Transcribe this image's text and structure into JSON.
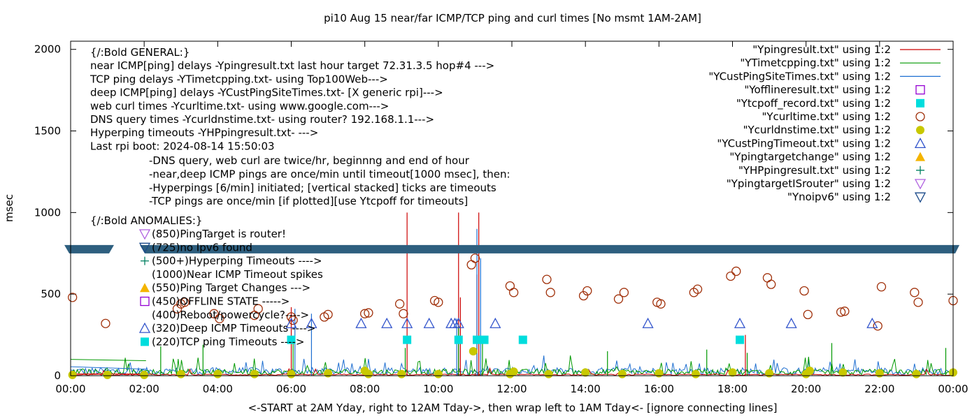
{
  "chart_data": {
    "type": "line",
    "title": "pi10 Aug 15  near/far ICMP/TCP ping and curl times [No msmt 1AM-2AM]",
    "xlabel": "<-START at 2AM Yday, right to 12AM Tday->, then wrap left to 1AM Tday<- [ignore connecting lines]",
    "ylabel": "msec",
    "xlim": [
      0,
      24
    ],
    "ylim": [
      0,
      2050
    ],
    "x_ticks": [
      "00:00",
      "02:00",
      "04:00",
      "06:00",
      "08:00",
      "10:00",
      "12:00",
      "14:00",
      "16:00",
      "18:00",
      "20:00",
      "22:00",
      "00:00"
    ],
    "y_ticks": [
      "0",
      "500",
      "1000",
      "1500",
      "2000"
    ],
    "y_tick_values": [
      0,
      500,
      1000,
      1500,
      2000
    ],
    "legend_position": "top-right",
    "legend": [
      {
        "label": "\"Ypingresult.txt\" using 1:2",
        "style": "line",
        "color": "#cc0000"
      },
      {
        "label": "\"YTimetcpping.txt\" using 1:2",
        "style": "line",
        "color": "#009900"
      },
      {
        "label": "\"YCustPingSiteTimes.txt\" using 1:2",
        "style": "line",
        "color": "#1f6fd1"
      },
      {
        "label": "\"Yofflineresult.txt\" using 1:2",
        "style": "open-square",
        "color": "#9400d3"
      },
      {
        "label": "\"Ytcpoff_record.txt\" using 1:2",
        "style": "filled-square",
        "color": "#00dddd"
      },
      {
        "label": "\"Ycurltime.txt\" using 1:2",
        "style": "open-circle",
        "color": "#a0300a"
      },
      {
        "label": "\"Ycurldnstime.txt\" using 1:2",
        "style": "filled-circle",
        "color": "#c8c800"
      },
      {
        "label": "\"YCustPingTimeout.txt\" using 1:2",
        "style": "open-triangle",
        "color": "#3355cc"
      },
      {
        "label": "\"Ypingtargetchange\" using 1:2",
        "style": "filled-triangle",
        "color": "#f4b400"
      },
      {
        "label": "\"YHPpingresult.txt\" using 1:2",
        "style": "plus",
        "color": "#008060"
      },
      {
        "label": "\"YpingtargetISrouter\" using 1:2",
        "style": "open-down-triangle",
        "color": "#b060e0"
      },
      {
        "label": "\"Ynoipv6\" using 1:2",
        "style": "open-down-triangle",
        "color": "#1a4a8a"
      }
    ],
    "annotations": {
      "general": [
        "{/:Bold GENERAL:}",
        "near ICMP[ping] delays -Ypingresult.txt last hour target 72.31.3.5 hop#4 --->",
        "TCP ping delays -YTimetcpping.txt- using Top100Web--->",
        "deep ICMP[ping] delays -YCustPingSiteTimes.txt- [X generic rpi]--->",
        "web curl times -Ycurltime.txt- using www.google.com--->",
        "DNS query times -Ycurldnstime.txt- using router? 192.168.1.1--->",
        "Hyperping timeouts -YHPpingresult.txt- --->",
        "Last rpi boot: 2024-08-14 15:50:03"
      ],
      "notes": [
        "-DNS query, web curl are twice/hr, beginnng and end of hour",
        "-near,deep ICMP pings are once/min until timeout[1000 msec], then:",
        "  -Hyperpings [6/min] initiated; [vertical stacked] ticks are timeouts",
        "-TCP pings are once/min [if plotted][use Ytcpoff for timeouts]"
      ],
      "anomalies_title": "{/:Bold ANOMALIES:}",
      "anomalies": [
        {
          "text": "(850)PingTarget is router!",
          "y": 850,
          "marker": "open-down-triangle",
          "color": "#b060e0"
        },
        {
          "text": "(725)no Ipv6 found",
          "y": 725,
          "marker": "open-down-triangle",
          "color": "#1a4a8a"
        },
        {
          "text": "(500+)Hyperping Timeouts ---->",
          "y": 700,
          "marker": "plus",
          "color": "#008060"
        },
        {
          "text": "(1000)Near ICMP Timeout spikes",
          "y": 620,
          "marker": "none",
          "color": "#000000"
        },
        {
          "text": "(550)Ping Target Changes --->",
          "y": 550,
          "marker": "filled-triangle",
          "color": "#f4b400"
        },
        {
          "text": "(450)OFFLINE STATE ----->",
          "y": 450,
          "marker": "open-square",
          "color": "#9400d3"
        },
        {
          "text": "(400)Reboot/powercycle?---->",
          "y": 400,
          "marker": "none",
          "color": "#000000"
        },
        {
          "text": "(320)Deep ICMP Timeouts ---->",
          "y": 320,
          "marker": "open-triangle",
          "color": "#3355cc"
        },
        {
          "text": "(220)TCP ping Timeouts ---->",
          "y": 220,
          "marker": "filled-square",
          "color": "#00dddd"
        }
      ]
    },
    "colors": {
      "near_icmp": "#cc0000",
      "tcp": "#009900",
      "deep_icmp": "#1f6fd1",
      "curl": "#a0300a",
      "dns": "#c8c800",
      "tcp_timeout": "#00dddd",
      "deep_timeout": "#3355cc",
      "break_band": "#2e5f7f"
    },
    "break_band_y": 775,
    "series": [
      {
        "name": "\"Ycurltime.txt\" using 1:2",
        "marker": "open-circle",
        "points": [
          [
            0.05,
            480
          ],
          [
            0.95,
            320
          ],
          [
            2.9,
            410
          ],
          [
            3.0,
            440
          ],
          [
            3.1,
            450
          ],
          [
            3.9,
            380
          ],
          [
            4.05,
            350
          ],
          [
            5.0,
            370
          ],
          [
            5.1,
            410
          ],
          [
            6.0,
            360
          ],
          [
            6.05,
            340
          ],
          [
            6.9,
            360
          ],
          [
            7.0,
            375
          ],
          [
            8.0,
            380
          ],
          [
            8.1,
            385
          ],
          [
            8.95,
            440
          ],
          [
            9.05,
            380
          ],
          [
            9.9,
            460
          ],
          [
            10.0,
            450
          ],
          [
            10.9,
            680
          ],
          [
            11.0,
            720
          ],
          [
            11.95,
            550
          ],
          [
            12.05,
            510
          ],
          [
            12.95,
            590
          ],
          [
            13.05,
            510
          ],
          [
            13.95,
            490
          ],
          [
            14.05,
            520
          ],
          [
            14.9,
            470
          ],
          [
            15.05,
            510
          ],
          [
            15.95,
            450
          ],
          [
            16.05,
            440
          ],
          [
            16.95,
            510
          ],
          [
            17.05,
            530
          ],
          [
            17.95,
            610
          ],
          [
            18.1,
            640
          ],
          [
            18.95,
            600
          ],
          [
            19.05,
            560
          ],
          [
            19.95,
            520
          ],
          [
            20.05,
            375
          ],
          [
            20.95,
            390
          ],
          [
            21.05,
            395
          ],
          [
            21.95,
            305
          ],
          [
            22.05,
            545
          ],
          [
            22.95,
            510
          ],
          [
            23.05,
            450
          ],
          [
            24.0,
            460
          ]
        ]
      },
      {
        "name": "\"Ycurldnstime.txt\" using 1:2",
        "marker": "filled-circle",
        "points": [
          [
            0.05,
            5
          ],
          [
            1.0,
            5
          ],
          [
            2.0,
            5
          ],
          [
            3.0,
            10
          ],
          [
            4.0,
            10
          ],
          [
            5.0,
            10
          ],
          [
            6.0,
            10
          ],
          [
            7.0,
            15
          ],
          [
            8.0,
            30
          ],
          [
            9.0,
            10
          ],
          [
            10.0,
            10
          ],
          [
            10.95,
            150
          ],
          [
            11.95,
            10
          ],
          [
            13.0,
            10
          ],
          [
            14.0,
            20
          ],
          [
            15.0,
            10
          ],
          [
            16.0,
            15
          ],
          [
            17.0,
            10
          ],
          [
            18.0,
            20
          ],
          [
            19.0,
            15
          ],
          [
            20.0,
            10
          ],
          [
            21.0,
            20
          ],
          [
            22.0,
            15
          ],
          [
            23.0,
            10
          ],
          [
            24.0,
            20
          ],
          [
            8.1,
            10
          ],
          [
            12.05,
            25
          ],
          [
            20.1,
            30
          ]
        ]
      },
      {
        "name": "\"Ytcpoff_record.txt\" using 1:2",
        "marker": "filled-square",
        "points": [
          [
            6.0,
            220
          ],
          [
            9.15,
            220
          ],
          [
            10.55,
            220
          ],
          [
            11.05,
            220
          ],
          [
            11.25,
            220
          ],
          [
            12.3,
            220
          ],
          [
            18.2,
            220
          ]
        ]
      },
      {
        "name": "\"YCustPingTimeout.txt\" using 1:2",
        "marker": "open-triangle",
        "points": [
          [
            6.0,
            320
          ],
          [
            6.55,
            320
          ],
          [
            7.9,
            320
          ],
          [
            8.6,
            320
          ],
          [
            9.15,
            320
          ],
          [
            9.75,
            320
          ],
          [
            10.35,
            320
          ],
          [
            10.45,
            320
          ],
          [
            10.55,
            320
          ],
          [
            11.55,
            320
          ],
          [
            15.7,
            320
          ],
          [
            18.2,
            320
          ],
          [
            19.6,
            320
          ],
          [
            21.8,
            320
          ]
        ]
      }
    ],
    "spikes": [
      {
        "x": 9.15,
        "y": 1000,
        "color": "#cc0000"
      },
      {
        "x": 10.55,
        "y": 1000,
        "color": "#cc0000"
      },
      {
        "x": 11.1,
        "y": 1000,
        "color": "#cc0000"
      },
      {
        "x": 6.0,
        "y": 420,
        "color": "#cc0000"
      },
      {
        "x": 10.6,
        "y": 480,
        "color": "#cc0000"
      },
      {
        "x": 11.05,
        "y": 620,
        "color": "#cc0000"
      },
      {
        "x": 18.35,
        "y": 250,
        "color": "#cc0000"
      },
      {
        "x": 11.05,
        "y": 900,
        "color": "#1f6fd1"
      },
      {
        "x": 11.15,
        "y": 720,
        "color": "#1f6fd1"
      },
      {
        "x": 6.1,
        "y": 410,
        "color": "#1f6fd1"
      },
      {
        "x": 6.55,
        "y": 380,
        "color": "#1f6fd1"
      },
      {
        "x": 10.5,
        "y": 350,
        "color": "#1f6fd1"
      },
      {
        "x": 2.45,
        "y": 180,
        "color": "#009900"
      },
      {
        "x": 3.6,
        "y": 190,
        "color": "#009900"
      },
      {
        "x": 6.05,
        "y": 210,
        "color": "#009900"
      },
      {
        "x": 9.1,
        "y": 170,
        "color": "#009900"
      },
      {
        "x": 10.55,
        "y": 300,
        "color": "#009900"
      },
      {
        "x": 11.2,
        "y": 230,
        "color": "#009900"
      },
      {
        "x": 14.6,
        "y": 150,
        "color": "#009900"
      },
      {
        "x": 17.3,
        "y": 160,
        "color": "#009900"
      },
      {
        "x": 18.4,
        "y": 140,
        "color": "#009900"
      },
      {
        "x": 20.7,
        "y": 200,
        "color": "#009900"
      },
      {
        "x": 23.8,
        "y": 170,
        "color": "#009900"
      }
    ]
  }
}
